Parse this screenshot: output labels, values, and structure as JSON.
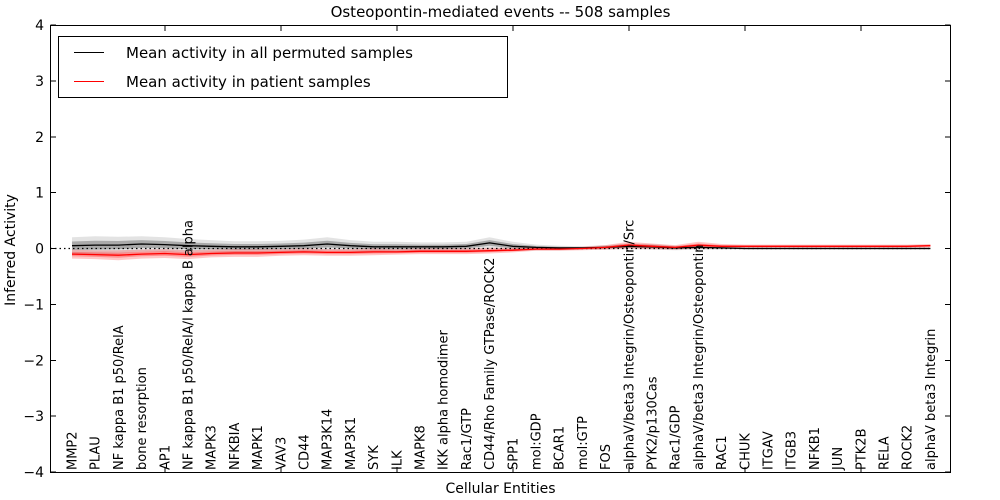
{
  "chart_data": {
    "type": "line",
    "title": "Osteopontin-mediated events -- 508 samples",
    "xlabel": "Cellular Entities",
    "ylabel": "Inferred Activity",
    "ylim": [
      -4,
      4
    ],
    "ytick_values": [
      4,
      3,
      2,
      1,
      0,
      -1,
      -2,
      -3,
      -4
    ],
    "ytick_labels": [
      "4",
      "3",
      "2",
      "1",
      "0",
      "−1",
      "−2",
      "−3",
      "−4"
    ],
    "x_major_tick_indices": [
      4,
      9,
      14,
      19,
      24,
      29,
      34
    ],
    "grid": false,
    "zero_line_style": "dotted",
    "legend_position": "upper left",
    "categories": [
      "MMP2",
      "PLAU",
      "NF kappa B1 p50/RelA",
      "bone resorption",
      "AP1",
      "NF kappa B1 p50/RelA/I kappa B alpha",
      "MAPK3",
      "NFKBIA",
      "MAPK1",
      "VAV3",
      "CD44",
      "MAP3K14",
      "MAP3K1",
      "SYK",
      "ILK",
      "MAPK8",
      "IKK alpha homodimer",
      "Rac1/GTP",
      "CD44/Rho Family GTPase/ROCK2",
      "SPP1",
      "mol:GDP",
      "BCAR1",
      "mol:GTP",
      "FOS",
      "alphaV/beta3 Integrin/Osteopontin/Src",
      "PYK2/p130Cas",
      "Rac1/GDP",
      "alphaV/beta3 Integrin/Osteopontin",
      "RAC1",
      "CHUK",
      "ITGAV",
      "ITGB3",
      "NFKB1",
      "JUN",
      "PTK2B",
      "RELA",
      "ROCK2",
      "alphaV beta3 Integrin"
    ],
    "series": [
      {
        "name": "Mean activity in all permuted samples",
        "color": "#000000",
        "band_outer_color": "rgba(0,0,0,0.11)",
        "band_inner_color": "rgba(0,0,0,0.25)",
        "values": [
          0.05,
          0.06,
          0.06,
          0.08,
          0.07,
          0.05,
          0.04,
          0.03,
          0.03,
          0.04,
          0.05,
          0.08,
          0.05,
          0.03,
          0.03,
          0.03,
          0.03,
          0.04,
          0.1,
          0.04,
          0.02,
          0.01,
          0.01,
          0.02,
          0.04,
          0.03,
          0.01,
          0.02,
          0.01,
          0.0,
          0.0,
          0.0,
          0.0,
          0.0,
          0.0,
          0.0,
          0.0,
          0.0
        ],
        "band_halfwidth": [
          0.15,
          0.16,
          0.15,
          0.14,
          0.13,
          0.12,
          0.11,
          0.1,
          0.1,
          0.1,
          0.11,
          0.12,
          0.1,
          0.09,
          0.09,
          0.08,
          0.08,
          0.08,
          0.1,
          0.08,
          0.05,
          0.04,
          0.03,
          0.04,
          0.05,
          0.05,
          0.04,
          0.04,
          0.03,
          0.02,
          0.02,
          0.02,
          0.02,
          0.02,
          0.02,
          0.02,
          0.02,
          0.02
        ]
      },
      {
        "name": "Mean activity in patient samples",
        "color": "#ff0000",
        "band_outer_color": "rgba(255,0,0,0.22)",
        "band_inner_color": "rgba(255,0,0,0.28)",
        "values": [
          -0.1,
          -0.11,
          -0.12,
          -0.1,
          -0.09,
          -0.11,
          -0.09,
          -0.08,
          -0.08,
          -0.07,
          -0.06,
          -0.07,
          -0.07,
          -0.06,
          -0.06,
          -0.05,
          -0.05,
          -0.05,
          -0.04,
          -0.03,
          -0.01,
          -0.01,
          0.0,
          0.02,
          0.06,
          0.04,
          0.02,
          0.06,
          0.04,
          0.04,
          0.04,
          0.04,
          0.04,
          0.04,
          0.04,
          0.04,
          0.04,
          0.05
        ],
        "band_halfwidth": [
          0.08,
          0.08,
          0.09,
          0.08,
          0.08,
          0.08,
          0.07,
          0.07,
          0.07,
          0.06,
          0.06,
          0.06,
          0.06,
          0.06,
          0.05,
          0.05,
          0.05,
          0.05,
          0.05,
          0.04,
          0.03,
          0.03,
          0.03,
          0.04,
          0.06,
          0.05,
          0.04,
          0.06,
          0.04,
          0.03,
          0.03,
          0.03,
          0.03,
          0.03,
          0.03,
          0.03,
          0.03,
          0.03
        ]
      }
    ]
  }
}
